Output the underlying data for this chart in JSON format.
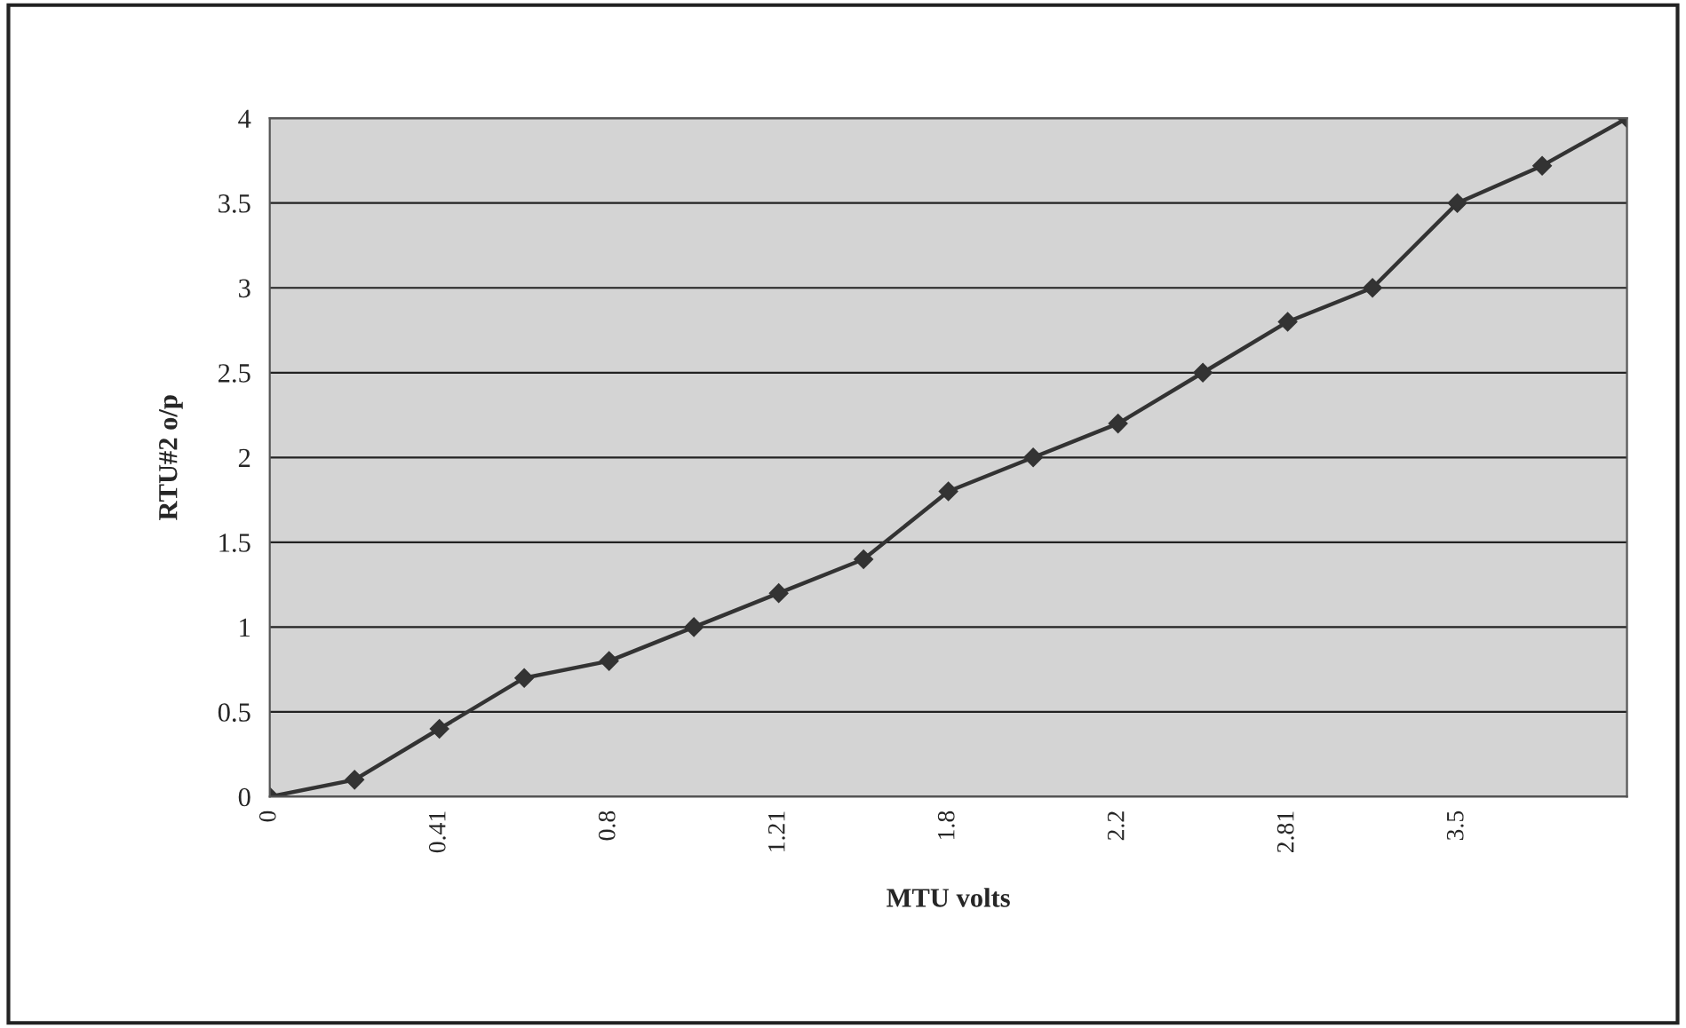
{
  "chart_data": {
    "type": "line",
    "xlabel": "MTU volts",
    "ylabel": "RTU#2 o/p",
    "categories": [
      "0",
      null,
      "0.41",
      null,
      "0.8",
      null,
      "1.21",
      null,
      "1.8",
      null,
      "2.2",
      null,
      "2.81",
      null,
      "3.5",
      null,
      null
    ],
    "series": [
      {
        "color": "#333333",
        "values": [
          0,
          0.1,
          0.4,
          0.7,
          0.8,
          1.0,
          1.2,
          1.4,
          1.8,
          2.0,
          2.2,
          2.5,
          2.8,
          3.0,
          3.5,
          3.72,
          4.0
        ]
      }
    ],
    "ylim": [
      0,
      4
    ],
    "yticks": [
      0,
      0.5,
      1,
      1.5,
      2,
      2.5,
      3,
      3.5,
      4
    ],
    "grid": "y",
    "marker": "diamond",
    "line_style": "solid"
  }
}
